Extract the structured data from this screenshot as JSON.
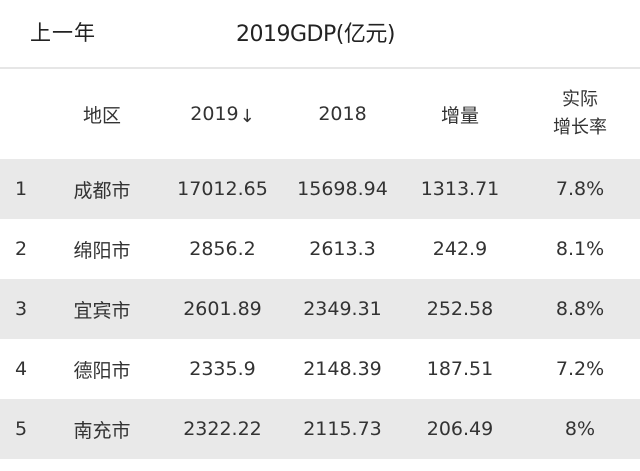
{
  "header": {
    "prev_year_label": "上一年",
    "title": "2019GDP(亿元)"
  },
  "table": {
    "columns": {
      "rank": "",
      "region": "地区",
      "y2019": "2019",
      "y2019_sort_icon": "↓",
      "y2018": "2018",
      "increase": "增量",
      "real_growth_line1": "实际",
      "real_growth_line2": "增长率"
    },
    "rows": [
      {
        "rank": "1",
        "region": "成都市",
        "y2019": "17012.65",
        "y2018": "15698.94",
        "increase": "1313.71",
        "growth": "7.8%"
      },
      {
        "rank": "2",
        "region": "绵阳市",
        "y2019": "2856.2",
        "y2018": "2613.3",
        "increase": "242.9",
        "growth": "8.1%"
      },
      {
        "rank": "3",
        "region": "宜宾市",
        "y2019": "2601.89",
        "y2018": "2349.31",
        "increase": "252.58",
        "growth": "8.8%"
      },
      {
        "rank": "4",
        "region": "德阳市",
        "y2019": "2335.9",
        "y2018": "2148.39",
        "increase": "187.51",
        "growth": "7.2%"
      },
      {
        "rank": "5",
        "region": "南充市",
        "y2019": "2322.22",
        "y2018": "2115.73",
        "increase": "206.49",
        "growth": "8%"
      }
    ]
  },
  "colors": {
    "row_shaded": "#e9e9e9",
    "row_plain": "#ffffff",
    "divider": "#e6e6e6",
    "text": "#333333"
  }
}
